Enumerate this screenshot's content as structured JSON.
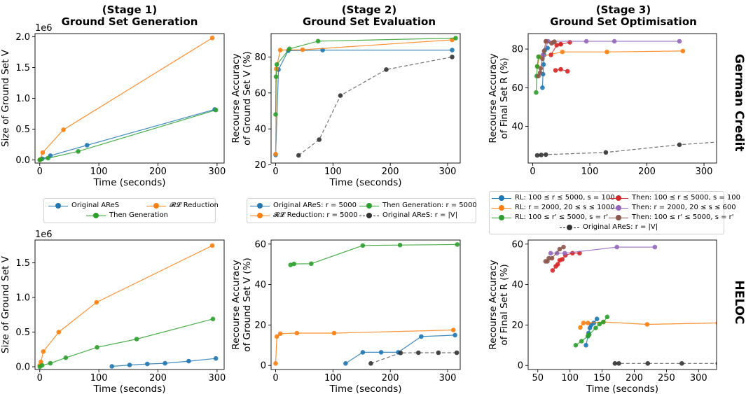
{
  "titles": [
    {
      "stage": "(Stage 1)",
      "name": "Ground Set Generation"
    },
    {
      "stage": "(Stage 2)",
      "name": "Ground Set Evaluation"
    },
    {
      "stage": "(Stage 3)",
      "name": "Ground Set Optimisation"
    }
  ],
  "row_labels": [
    "German Credit",
    "HELOC"
  ],
  "colors": {
    "blue": "#1f77b4",
    "orange": "#ff7f0e",
    "green": "#2ca02c",
    "red": "#d62728",
    "purple": "#9467bd",
    "brown": "#8c564b",
    "black": "#333333"
  },
  "legends": {
    "gen": [
      {
        "label": "Original AReS",
        "color": "#1f77b4"
      },
      {
        "label": "𝓡𝓛 Reduction",
        "color": "#ff7f0e"
      },
      {
        "label": "Then Generation",
        "color": "#2ca02c"
      }
    ],
    "eval": [
      {
        "label": "Original AReS: r = 5000",
        "color": "#1f77b4",
        "dash": false
      },
      {
        "label": "𝓡𝓛 Reduction: r = 5000",
        "color": "#ff7f0e",
        "dash": false
      },
      {
        "label": "Then Generation: r = 5000",
        "color": "#2ca02c",
        "dash": false
      },
      {
        "label": "Original AReS: r = |V|",
        "color": "#333333",
        "dash": true
      }
    ],
    "opt": [
      {
        "label": "RL: 100 ≤ r ≤ 5000, s = 100",
        "color": "#1f77b4",
        "dash": false
      },
      {
        "label": "RL: r = 2000, 20 ≤ s ≤ 1000",
        "color": "#ff7f0e",
        "dash": false
      },
      {
        "label": "RL: 100 ≤ r' ≤ 5000, s = r'",
        "color": "#2ca02c",
        "dash": false
      },
      {
        "label": "Then: 100 ≤ r ≤ 5000, s = 100",
        "color": "#d62728",
        "dash": false
      },
      {
        "label": "Then: r = 2000, 20 ≤ s ≤ 600",
        "color": "#9467bd",
        "dash": false
      },
      {
        "label": "Then: 100 ≤ r' ≤ 5000, s = r'",
        "color": "#8c564b",
        "dash": false
      },
      {
        "label": "Original AReS: r = |V|",
        "color": "#333333",
        "dash": true
      }
    ]
  },
  "chart_data": [
    {
      "id": "gc-gen",
      "type": "line",
      "xlabel": "Time (seconds)",
      "ylabel": "Size of Ground Set V",
      "xlim": [
        -8,
        312
      ],
      "ylim": [
        -0.05,
        2.05
      ],
      "xticks": [
        0,
        100,
        200,
        300
      ],
      "yticks": [
        0,
        0.5,
        1.0,
        1.5,
        2.0
      ],
      "ytick_labels": [
        "0.0",
        "0.5",
        "1.0",
        "1.5",
        "2.0"
      ],
      "offset_label": "1e6",
      "series": [
        {
          "color": "#1f77b4",
          "x": [
            0,
            4,
            18,
            80,
            296
          ],
          "y": [
            0,
            0.02,
            0.07,
            0.24,
            0.82
          ]
        },
        {
          "color": "#ff7f0e",
          "x": [
            0,
            5,
            40,
            292
          ],
          "y": [
            0,
            0.12,
            0.49,
            1.98
          ]
        },
        {
          "color": "#2ca02c",
          "x": [
            0,
            2,
            14,
            65,
            298
          ],
          "y": [
            0,
            0.01,
            0.03,
            0.14,
            0.81
          ]
        }
      ]
    },
    {
      "id": "gc-eval",
      "type": "line",
      "xlabel": "Time (seconds)",
      "ylabel": "Recourse Accuracy of Ground Set V (%)",
      "xlim": [
        -8,
        322
      ],
      "ylim": [
        21,
        93
      ],
      "xticks": [
        0,
        100,
        200,
        300
      ],
      "yticks": [
        20,
        40,
        60,
        80
      ],
      "series": [
        {
          "color": "#1f77b4",
          "x": [
            0,
            5,
            22,
            82,
            308
          ],
          "y": [
            25.5,
            73,
            83.5,
            83.8,
            83.8
          ]
        },
        {
          "color": "#ff7f0e",
          "x": [
            0,
            1,
            8,
            47,
            308
          ],
          "y": [
            26,
            73.3,
            83.8,
            84,
            89.5
          ]
        },
        {
          "color": "#2ca02c",
          "x": [
            0,
            0.5,
            2,
            24,
            74,
            314
          ],
          "y": [
            48,
            69,
            75.8,
            84.5,
            88.8,
            90.5
          ]
        },
        {
          "color": "#333333",
          "dash": true,
          "x": [
            40,
            76,
            113,
            193,
            308
          ],
          "y": [
            25.3,
            34,
            58.5,
            73,
            80
          ]
        }
      ]
    },
    {
      "id": "gc-opt",
      "type": "line",
      "xlabel": "",
      "ylabel": "Recourse Accuracy of Final Set R (%)",
      "xlim": [
        -8,
        322
      ],
      "ylim": [
        21,
        88
      ],
      "xticks": [
        0,
        100,
        200,
        300
      ],
      "yticks": [
        40,
        60,
        80
      ],
      "series": [
        {
          "color": "#1f77b4",
          "x": [
            17,
            18,
            19,
            20,
            21,
            26
          ],
          "y": [
            60,
            67,
            72,
            77,
            79.3,
            80.5
          ]
        },
        {
          "color": "#ff7f0e",
          "x": [
            8,
            12,
            52,
            130,
            263
          ],
          "y": [
            71,
            76,
            78.5,
            78.5,
            79
          ]
        },
        {
          "color": "#2ca02c",
          "x": [
            6,
            7,
            8,
            10
          ],
          "y": [
            57.5,
            66,
            71,
            76
          ]
        },
        {
          "color": "#d62728",
          "x": [
            40,
            49,
            61
          ],
          "y": [
            69,
            69.5,
            68.5
          ]
        },
        {
          "color": "#d62728",
          "x": [
            32,
            42,
            49
          ],
          "y": [
            77,
            82,
            82.5
          ]
        },
        {
          "color": "#d62728",
          "x": [
            49,
            65
          ],
          "y": [
            82.5,
            83.5
          ]
        },
        {
          "color": "#9467bd",
          "x": [
            18,
            27,
            94,
            143,
            257
          ],
          "y": [
            77,
            84,
            84,
            84,
            84
          ]
        },
        {
          "color": "#8c564b",
          "x": [
            10,
            13,
            14,
            17,
            20,
            23
          ],
          "y": [
            66,
            67.8,
            70,
            75,
            79,
            84
          ]
        },
        {
          "color": "#8c564b",
          "x": [
            23,
            33,
            36,
            38
          ],
          "y": [
            84,
            83,
            83.5,
            83.8
          ]
        },
        {
          "color": "#333333",
          "dash": true,
          "x": [
            8,
            15,
            23,
            128,
            257,
            330
          ],
          "y": [
            25,
            25.2,
            25.4,
            26.5,
            30.5,
            32
          ]
        }
      ]
    },
    {
      "id": "heloc-gen",
      "type": "line",
      "xlabel": "Time (seconds)",
      "ylabel": "Size of Ground Set V",
      "xlim": [
        -8,
        312
      ],
      "ylim": [
        -0.04,
        1.83
      ],
      "xticks": [
        0,
        100,
        200,
        300
      ],
      "yticks": [
        0,
        0.5,
        1.0,
        1.5
      ],
      "ytick_labels": [
        "0.0",
        "0.5",
        "1.0",
        "1.5"
      ],
      "offset_label": "1e6",
      "series": [
        {
          "color": "#1f77b4",
          "x": [
            122,
            152,
            182,
            212,
            252,
            298
          ],
          "y": [
            0.005,
            0.025,
            0.04,
            0.05,
            0.08,
            0.12
          ]
        },
        {
          "color": "#ff7f0e",
          "x": [
            0,
            2,
            6,
            32,
            96,
            292
          ],
          "y": [
            0.02,
            0.07,
            0.22,
            0.5,
            0.93,
            1.75
          ]
        },
        {
          "color": "#2ca02c",
          "x": [
            0,
            4,
            18,
            44,
            97,
            164,
            293
          ],
          "y": [
            0,
            0.02,
            0.05,
            0.13,
            0.28,
            0.4,
            0.69
          ]
        }
      ]
    },
    {
      "id": "heloc-eval",
      "type": "line",
      "xlabel": "Time (seconds)",
      "ylabel": "Recourse Accuracy of Ground Set V (%)",
      "xlim": [
        -8,
        322
      ],
      "ylim": [
        -2,
        62
      ],
      "xticks": [
        0,
        100,
        200,
        300
      ],
      "yticks": [
        0,
        20,
        40,
        60
      ],
      "series": [
        {
          "color": "#1f77b4",
          "x": [
            122,
            152,
            184,
            214,
            254,
            313
          ],
          "y": [
            1,
            6.5,
            6.5,
            6.5,
            14.3,
            15
          ]
        },
        {
          "color": "#ff7f0e",
          "x": [
            0,
            2,
            8,
            37,
            102,
            310
          ],
          "y": [
            1,
            14.3,
            15.7,
            16,
            16,
            17.5
          ]
        },
        {
          "color": "#2ca02c",
          "x": [
            26,
            32,
            62,
            152,
            217,
            317
          ],
          "y": [
            49.7,
            50.2,
            50.3,
            59.3,
            59.5,
            59.8
          ]
        },
        {
          "color": "#333333",
          "dash": true,
          "x": [
            166,
            218,
            249,
            284,
            316
          ],
          "y": [
            1,
            6.2,
            6.3,
            6.3,
            6.3
          ]
        }
      ]
    },
    {
      "id": "heloc-opt",
      "type": "line",
      "xlabel": "Time (seconds)",
      "ylabel": "Recourse Accuracy of Final Set R (%)",
      "xlim": [
        35,
        328
      ],
      "ylim": [
        -2,
        62
      ],
      "xticks": [
        50,
        100,
        150,
        200,
        250,
        300
      ],
      "yticks": [
        0,
        20,
        40,
        60
      ],
      "series": [
        {
          "color": "#1f77b4",
          "x": [
            125,
            128,
            129,
            131,
            133,
            137,
            142
          ],
          "y": [
            10,
            14.5,
            16,
            18.5,
            20,
            21,
            23
          ]
        },
        {
          "color": "#ff7f0e",
          "x": [
            116,
            121,
            128,
            152,
            220,
            330
          ],
          "y": [
            18.8,
            21,
            21,
            21.5,
            20.3,
            21
          ]
        },
        {
          "color": "#2ca02c",
          "x": [
            109,
            118,
            128,
            130,
            140,
            146,
            152,
            158
          ],
          "y": [
            10,
            12,
            14.5,
            15.3,
            18.5,
            20.5,
            21.5,
            24
          ]
        },
        {
          "color": "#d62728",
          "x": [
            73,
            78,
            81,
            84,
            88,
            93,
            104,
            115
          ],
          "y": [
            47,
            49,
            50,
            52,
            52.5,
            54.5,
            55.5,
            55.5
          ]
        },
        {
          "color": "#9467bd",
          "x": [
            70,
            80,
            92,
            173,
            232
          ],
          "y": [
            55.5,
            55.5,
            55.5,
            58.5,
            58.5
          ]
        },
        {
          "color": "#8c564b",
          "x": [
            62,
            65,
            67,
            72,
            84,
            90
          ],
          "y": [
            51.5,
            51.5,
            53,
            53,
            57.5,
            58.5
          ]
        },
        {
          "color": "#333333",
          "dash": true,
          "x": [
            170,
            176,
            221,
            274,
            330
          ],
          "y": [
            1,
            1,
            1,
            1,
            1
          ]
        }
      ]
    }
  ]
}
